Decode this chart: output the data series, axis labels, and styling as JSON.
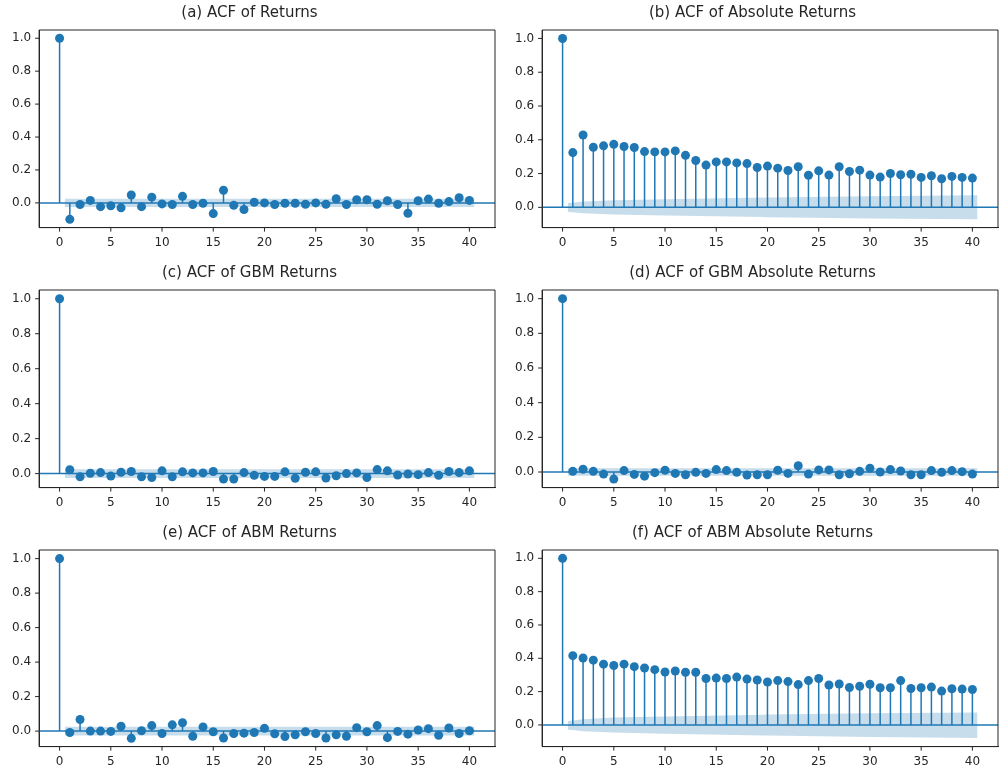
{
  "chart_data": [
    {
      "type": "lollipop",
      "title": "(a) ACF of Returns",
      "xlim": [
        -2,
        42.5
      ],
      "ylim": [
        -0.15,
        1.05
      ],
      "xticks": [
        0,
        5,
        10,
        15,
        20,
        25,
        30,
        35,
        40
      ],
      "yticks": [
        {
          "value": 0,
          "label": "0.0"
        },
        {
          "value": 0.2,
          "label": "0.2"
        },
        {
          "value": 0.4,
          "label": "0.4"
        },
        {
          "value": 0.6,
          "label": "0.6"
        },
        {
          "value": 0.8,
          "label": "0.8"
        },
        {
          "value": 1,
          "label": "1.0"
        }
      ],
      "grid": false,
      "series": [
        {
          "type": "line",
          "color": "#1f77b4",
          "marker": "none",
          "x": [
            -2,
            0.5,
            40.5,
            42.5
          ],
          "values": [
            0,
            0,
            0,
            0
          ],
          "lower": [
            null,
            -0.025,
            -0.025,
            null
          ],
          "upper": [
            null,
            0.025,
            0.025,
            null
          ]
        },
        {
          "type": "lollipop",
          "color": "#1f77b4",
          "marker": "circle",
          "x": [
            0,
            1,
            2,
            3,
            4,
            5,
            6,
            7,
            8,
            9,
            10,
            11,
            12,
            13,
            14,
            15,
            16,
            17,
            18,
            19,
            20,
            21,
            22,
            23,
            24,
            25,
            26,
            27,
            28,
            29,
            30,
            31,
            32,
            33,
            34,
            35,
            36,
            37,
            38,
            39,
            40
          ],
          "values": [
            1,
            -0.1,
            -0.01,
            0.015,
            -0.023,
            -0.017,
            -0.03,
            0.048,
            -0.023,
            0.035,
            -0.006,
            -0.01,
            0.04,
            -0.01,
            -0.002,
            -0.065,
            0.077,
            -0.015,
            -0.04,
            0.004,
            0,
            -0.01,
            -0.002,
            -0.002,
            -0.008,
            0,
            -0.008,
            0.025,
            -0.01,
            0.019,
            0.019,
            -0.008,
            0.013,
            -0.01,
            -0.063,
            0.013,
            0.023,
            -0.002,
            0.008,
            0.031,
            0.015
          ]
        }
      ]
    },
    {
      "type": "lollipop",
      "title": "(b) ACF of Absolute Returns",
      "xlim": [
        -2,
        42.5
      ],
      "ylim": [
        -0.12,
        1.05
      ],
      "xticks": [
        0,
        5,
        10,
        15,
        20,
        25,
        30,
        35,
        40
      ],
      "yticks": [
        {
          "value": 0,
          "label": "0.0"
        },
        {
          "value": 0.2,
          "label": "0.2"
        },
        {
          "value": 0.4,
          "label": "0.4"
        },
        {
          "value": 0.6,
          "label": "0.6"
        },
        {
          "value": 0.8,
          "label": "0.8"
        },
        {
          "value": 1,
          "label": "1.0"
        }
      ],
      "grid": false,
      "series": [
        {
          "type": "line",
          "color": "#1f77b4",
          "marker": "none",
          "x": [
            -2,
            0.5,
            1,
            2,
            5,
            10,
            20,
            30,
            40.5,
            42.5
          ],
          "values": [
            0,
            0,
            0,
            0,
            0,
            0,
            0,
            0,
            0,
            0
          ],
          "lower": [
            null,
            -0.027,
            -0.029,
            -0.035,
            -0.042,
            -0.048,
            -0.058,
            -0.066,
            -0.071,
            null
          ],
          "upper": [
            null,
            0.025,
            0.027,
            0.035,
            0.042,
            0.048,
            0.058,
            0.066,
            0.071,
            null
          ]
        },
        {
          "type": "lollipop",
          "color": "#1f77b4",
          "marker": "circle",
          "x": [
            0,
            1,
            2,
            3,
            4,
            5,
            6,
            7,
            8,
            9,
            10,
            11,
            12,
            13,
            14,
            15,
            16,
            17,
            18,
            19,
            20,
            21,
            22,
            23,
            24,
            25,
            26,
            27,
            28,
            29,
            30,
            31,
            32,
            33,
            34,
            35,
            36,
            37,
            38,
            39,
            40
          ],
          "values": [
            1,
            0.324,
            0.428,
            0.356,
            0.364,
            0.373,
            0.36,
            0.354,
            0.33,
            0.328,
            0.328,
            0.334,
            0.308,
            0.277,
            0.25,
            0.269,
            0.269,
            0.263,
            0.259,
            0.236,
            0.244,
            0.232,
            0.218,
            0.24,
            0.19,
            0.216,
            0.191,
            0.24,
            0.212,
            0.22,
            0.191,
            0.179,
            0.2,
            0.193,
            0.196,
            0.177,
            0.187,
            0.169,
            0.183,
            0.177,
            0.173
          ]
        }
      ]
    },
    {
      "type": "lollipop",
      "title": "(c) ACF of GBM Returns",
      "xlim": [
        -2,
        42.5
      ],
      "ylim": [
        -0.08,
        1.05
      ],
      "xticks": [
        0,
        5,
        10,
        15,
        20,
        25,
        30,
        35,
        40
      ],
      "yticks": [
        {
          "value": 0,
          "label": "0.0"
        },
        {
          "value": 0.2,
          "label": "0.2"
        },
        {
          "value": 0.4,
          "label": "0.4"
        },
        {
          "value": 0.6,
          "label": "0.6"
        },
        {
          "value": 0.8,
          "label": "0.8"
        },
        {
          "value": 1,
          "label": "1.0"
        }
      ],
      "grid": false,
      "series": [
        {
          "type": "line",
          "color": "#1f77b4",
          "marker": "none",
          "x": [
            -2,
            0.5,
            40.5,
            42.5
          ],
          "values": [
            0,
            0,
            0,
            0
          ],
          "lower": [
            null,
            -0.025,
            -0.025,
            null
          ],
          "upper": [
            null,
            0.025,
            0.025,
            null
          ]
        },
        {
          "type": "lollipop",
          "color": "#1f77b4",
          "marker": "circle",
          "x": [
            0,
            1,
            2,
            3,
            4,
            5,
            6,
            7,
            8,
            9,
            10,
            11,
            12,
            13,
            14,
            15,
            16,
            17,
            18,
            19,
            20,
            21,
            22,
            23,
            24,
            25,
            26,
            27,
            28,
            29,
            30,
            31,
            32,
            33,
            34,
            35,
            36,
            37,
            38,
            39,
            40
          ],
          "values": [
            1,
            0.022,
            -0.018,
            0.002,
            0.006,
            -0.014,
            0.008,
            0.012,
            -0.018,
            -0.022,
            0.016,
            -0.018,
            0.01,
            0.004,
            0.004,
            0.012,
            -0.031,
            -0.031,
            0.006,
            -0.01,
            -0.016,
            -0.016,
            0.01,
            -0.027,
            0.008,
            0.01,
            -0.025,
            -0.012,
            0,
            0.004,
            -0.022,
            0.023,
            0.016,
            -0.008,
            -0.002,
            -0.006,
            0.006,
            -0.01,
            0.012,
            0.006,
            0.016
          ]
        }
      ]
    },
    {
      "type": "lollipop",
      "title": "(d) ACF of GBM Absolute Returns",
      "xlim": [
        -2,
        42.5
      ],
      "ylim": [
        -0.09,
        1.05
      ],
      "xticks": [
        0,
        5,
        10,
        15,
        20,
        25,
        30,
        35,
        40
      ],
      "yticks": [
        {
          "value": 0,
          "label": "0.0"
        },
        {
          "value": 0.2,
          "label": "0.2"
        },
        {
          "value": 0.4,
          "label": "0.4"
        },
        {
          "value": 0.6,
          "label": "0.6"
        },
        {
          "value": 0.8,
          "label": "0.8"
        },
        {
          "value": 1,
          "label": "1.0"
        }
      ],
      "grid": false,
      "series": [
        {
          "type": "line",
          "color": "#1f77b4",
          "marker": "none",
          "x": [
            -2,
            0.5,
            40.5,
            42.5
          ],
          "values": [
            0,
            0,
            0,
            0
          ],
          "lower": [
            null,
            -0.022,
            -0.022,
            null
          ],
          "upper": [
            null,
            0.022,
            0.022,
            null
          ]
        },
        {
          "type": "lollipop",
          "color": "#1f77b4",
          "marker": "circle",
          "x": [
            0,
            1,
            2,
            3,
            4,
            5,
            6,
            7,
            8,
            9,
            10,
            11,
            12,
            13,
            14,
            15,
            16,
            17,
            18,
            19,
            20,
            21,
            22,
            23,
            24,
            25,
            26,
            27,
            28,
            29,
            30,
            31,
            32,
            33,
            34,
            35,
            36,
            37,
            38,
            39,
            40
          ],
          "values": [
            1,
            0.004,
            0.016,
            0.004,
            -0.012,
            -0.041,
            0.008,
            -0.014,
            -0.024,
            -0.004,
            0.01,
            -0.008,
            -0.016,
            -0.002,
            -0.008,
            0.014,
            0.008,
            -0.002,
            -0.018,
            -0.016,
            -0.016,
            0.01,
            -0.008,
            0.036,
            -0.012,
            0.012,
            0.012,
            -0.016,
            -0.01,
            0.004,
            0.022,
            0,
            0.014,
            0.006,
            -0.016,
            -0.016,
            0.008,
            -0.002,
            0.008,
            0.002,
            -0.012
          ]
        }
      ]
    },
    {
      "type": "lollipop",
      "title": "(e) ACF of ABM Returns",
      "xlim": [
        -2,
        42.5
      ],
      "ylim": [
        -0.09,
        1.05
      ],
      "xticks": [
        0,
        5,
        10,
        15,
        20,
        25,
        30,
        35,
        40
      ],
      "yticks": [
        {
          "value": 0,
          "label": "0.0"
        },
        {
          "value": 0.2,
          "label": "0.2"
        },
        {
          "value": 0.4,
          "label": "0.4"
        },
        {
          "value": 0.6,
          "label": "0.6"
        },
        {
          "value": 0.8,
          "label": "0.8"
        },
        {
          "value": 1,
          "label": "1.0"
        }
      ],
      "grid": false,
      "series": [
        {
          "type": "line",
          "color": "#1f77b4",
          "marker": "none",
          "x": [
            -2,
            0.5,
            40.5,
            42.5
          ],
          "values": [
            0,
            0,
            0,
            0
          ],
          "lower": [
            null,
            -0.025,
            -0.025,
            null
          ],
          "upper": [
            null,
            0.025,
            0.025,
            null
          ]
        },
        {
          "type": "lollipop",
          "color": "#1f77b4",
          "marker": "circle",
          "x": [
            0,
            1,
            2,
            3,
            4,
            5,
            6,
            7,
            8,
            9,
            10,
            11,
            12,
            13,
            14,
            15,
            16,
            17,
            18,
            19,
            20,
            21,
            22,
            23,
            24,
            25,
            26,
            27,
            28,
            29,
            30,
            31,
            32,
            33,
            34,
            35,
            36,
            37,
            38,
            39,
            40
          ],
          "values": [
            1,
            -0.008,
            0.067,
            0,
            0,
            -0.002,
            0.028,
            -0.042,
            0.002,
            0.032,
            -0.014,
            0.036,
            0.048,
            -0.03,
            0.024,
            -0.004,
            -0.04,
            -0.014,
            -0.012,
            -0.008,
            0.016,
            -0.016,
            -0.032,
            -0.022,
            -0.004,
            -0.014,
            -0.04,
            -0.022,
            -0.03,
            0.02,
            -0.004,
            0.032,
            -0.038,
            -0.002,
            -0.018,
            0.006,
            0.014,
            -0.024,
            0.018,
            -0.014,
            0.002
          ]
        }
      ]
    },
    {
      "type": "lollipop",
      "title": "(f) ACF of ABM Absolute Returns",
      "xlim": [
        -2,
        42.5
      ],
      "ylim": [
        -0.13,
        1.05
      ],
      "xticks": [
        0,
        5,
        10,
        15,
        20,
        25,
        30,
        35,
        40
      ],
      "yticks": [
        {
          "value": 0,
          "label": "0.0"
        },
        {
          "value": 0.2,
          "label": "0.2"
        },
        {
          "value": 0.4,
          "label": "0.4"
        },
        {
          "value": 0.6,
          "label": "0.6"
        },
        {
          "value": 0.8,
          "label": "0.8"
        },
        {
          "value": 1,
          "label": "1.0"
        }
      ],
      "grid": false,
      "series": [
        {
          "type": "line",
          "color": "#1f77b4",
          "marker": "none",
          "x": [
            -2,
            0.5,
            1,
            2,
            5,
            10,
            20,
            30,
            40.5,
            42.5
          ],
          "values": [
            0,
            0,
            0,
            0,
            0,
            0,
            0,
            0,
            0,
            0
          ],
          "lower": [
            null,
            -0.029,
            -0.031,
            -0.038,
            -0.046,
            -0.053,
            -0.064,
            -0.072,
            -0.078,
            null
          ],
          "upper": [
            null,
            0.023,
            0.026,
            0.034,
            0.044,
            0.051,
            0.062,
            0.07,
            0.074,
            null
          ]
        },
        {
          "type": "lollipop",
          "color": "#1f77b4",
          "marker": "circle",
          "x": [
            0,
            1,
            2,
            3,
            4,
            5,
            6,
            7,
            8,
            9,
            10,
            11,
            12,
            13,
            14,
            15,
            16,
            17,
            18,
            19,
            20,
            21,
            22,
            23,
            24,
            25,
            26,
            27,
            28,
            29,
            30,
            31,
            32,
            33,
            34,
            35,
            36,
            37,
            38,
            39,
            40
          ],
          "values": [
            1,
            0.416,
            0.402,
            0.389,
            0.365,
            0.357,
            0.365,
            0.35,
            0.342,
            0.332,
            0.318,
            0.324,
            0.316,
            0.316,
            0.279,
            0.281,
            0.279,
            0.287,
            0.275,
            0.27,
            0.258,
            0.266,
            0.26,
            0.242,
            0.266,
            0.279,
            0.24,
            0.246,
            0.225,
            0.232,
            0.244,
            0.223,
            0.223,
            0.266,
            0.219,
            0.223,
            0.227,
            0.203,
            0.217,
            0.215,
            0.213
          ]
        }
      ]
    }
  ]
}
